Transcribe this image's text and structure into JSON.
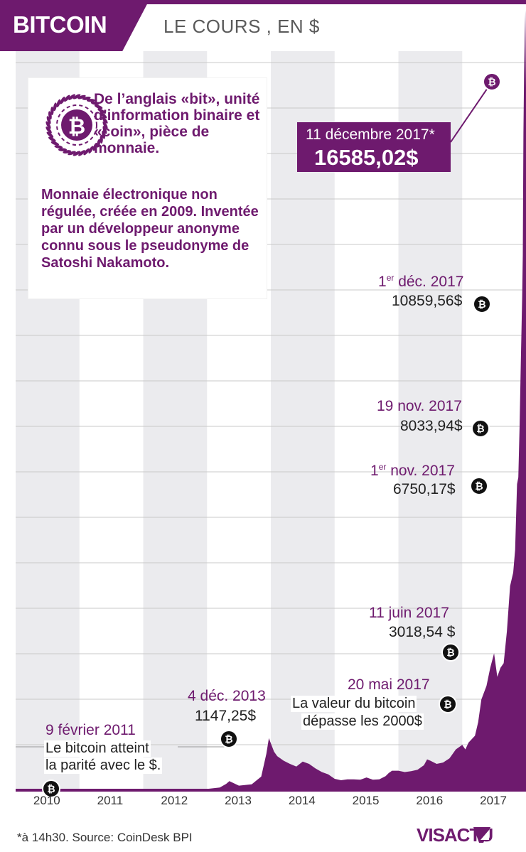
{
  "header": {
    "title": "BITCOIN",
    "subtitle": "LE COURS , EN $"
  },
  "info": {
    "definition": "De l’anglais «bit», unité d’information binaire et «coin», pièce de monnaie.",
    "description": "Monnaie électronique non régulée, créée en 2009. Inventée par un développeur anonyme connu sous le pseudonyme de Satoshi Nakamoto."
  },
  "annotations": {
    "peak_date": "11 décembre 2017*",
    "peak_value": "16585,02$",
    "dec1_day": "1",
    "dec1_sup": "er",
    "dec1_rest": " déc. 2017",
    "dec1_value": "10859,56$",
    "nov19_date": "19 nov. 2017",
    "nov19_value": "8033,94$",
    "nov1_day": "1",
    "nov1_sup": "er",
    "nov1_rest": " nov. 2017",
    "nov1_value": "6750,17$",
    "jun11_date": "11 juin 2017",
    "jun11_value": "3018,54 $",
    "may20_date": "20 mai 2017",
    "may20_text1": "La valeur du bitcoin",
    "may20_text2": "dépasse les 2000$",
    "dec4_date": "4 déc. 2013",
    "dec4_value": "1147,25$",
    "feb9_date": "9 février 2011",
    "feb9_text1": "Le bitcoin atteint",
    "feb9_text2": "la parité avec le $."
  },
  "footer": {
    "note": "*à 14h30. Source: CoinDesk BPI",
    "logo": "VISACTU"
  },
  "colors": {
    "brand": "#6e1a6e",
    "band": "#ebebee",
    "grid": "#c8c8c8"
  },
  "chart_data": {
    "type": "area",
    "title": "BITCOIN",
    "subtitle": "LE COURS , EN $",
    "x_ticks": [
      "2010",
      "2011",
      "2012",
      "2013",
      "2014",
      "2015",
      "2016",
      "2017"
    ],
    "xlim": [
      2010.0,
      2018.0
    ],
    "ylim": [
      0,
      17300
    ],
    "grid": true,
    "series": [
      {
        "x": [
          2010.55,
          2010.9,
          2011.1,
          2011.3,
          2011.45,
          2011.6,
          2011.8,
          2012.0,
          2012.3,
          2012.6,
          2012.9,
          2013.2,
          2013.3,
          2013.35,
          2013.5,
          2013.7,
          2013.85,
          2013.93,
          2013.97,
          2014.05,
          2014.1,
          2014.2,
          2014.3,
          2014.4,
          2014.5,
          2014.6,
          2014.7,
          2014.8,
          2014.9,
          2015.0,
          2015.1,
          2015.2,
          2015.3,
          2015.4,
          2015.5,
          2015.6,
          2015.7,
          2015.8,
          2015.85,
          2015.9,
          2016.0,
          2016.1,
          2016.2,
          2016.3,
          2016.4,
          2016.45,
          2016.5,
          2016.6,
          2016.7,
          2016.8,
          2016.9,
          2017.0,
          2017.05,
          2017.1,
          2017.2,
          2017.25,
          2017.3,
          2017.38,
          2017.44,
          2017.5,
          2017.55,
          2017.6,
          2017.65,
          2017.7,
          2017.75,
          2017.8,
          2017.83,
          2017.86,
          2017.88,
          2017.9,
          2017.92,
          2017.94,
          2017.95,
          2017.96,
          2017.97,
          2017.98,
          2017.99,
          2018.0
        ],
        "y": [
          0.06,
          0.3,
          1,
          3,
          10,
          14,
          5,
          6,
          8,
          12,
          13,
          60,
          140,
          200,
          100,
          130,
          300,
          800,
          1147.25,
          850,
          750,
          650,
          580,
          520,
          630,
          580,
          480,
          400,
          350,
          250,
          220,
          240,
          240,
          230,
          280,
          230,
          240,
          310,
          380,
          430,
          430,
          400,
          420,
          450,
          550,
          680,
          650,
          580,
          610,
          700,
          900,
          1000,
          900,
          1050,
          1200,
          1500,
          2000,
          2300,
          2700,
          3018.54,
          2500,
          2700,
          2800,
          3500,
          4500,
          4800,
          5300,
          6750.17,
          6900,
          8033.94,
          9500,
          10859.56,
          11800,
          14500,
          15800,
          16585.02,
          17200,
          15500
        ]
      }
    ],
    "annotations": [
      {
        "date": "9 février 2011",
        "value": 1
      },
      {
        "date": "4 déc. 2013",
        "value": 1147.25
      },
      {
        "date": "20 mai 2017",
        "value": 2000
      },
      {
        "date": "11 juin 2017",
        "value": 3018.54
      },
      {
        "date": "1 nov. 2017",
        "value": 6750.17
      },
      {
        "date": "19 nov. 2017",
        "value": 8033.94
      },
      {
        "date": "1 déc. 2017",
        "value": 10859.56
      },
      {
        "date": "11 décembre 2017",
        "value": 16585.02
      }
    ]
  }
}
